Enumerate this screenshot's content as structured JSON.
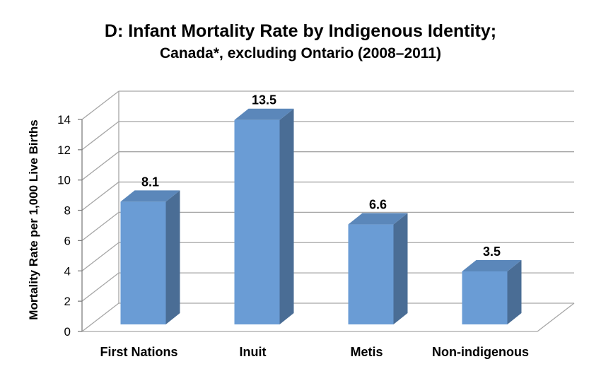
{
  "chart_data": {
    "type": "bar",
    "title": "D: Infant Mortality Rate by Indigenous Identity;",
    "subtitle": "Canada*, excluding Ontario (2008–2011)",
    "ylabel": "Mortality Rate per 1,000 Live Births",
    "xlabel": "",
    "categories": [
      "First Nations",
      "Inuit",
      "Metis",
      "Non-indigenous"
    ],
    "values": [
      8.1,
      13.5,
      6.6,
      3.5
    ],
    "data_labels": [
      "8.1",
      "13.5",
      "6.6",
      "3.5"
    ],
    "ylim": [
      0,
      14
    ],
    "yticks": [
      0,
      2,
      4,
      6,
      8,
      10,
      12,
      14
    ],
    "grid": true,
    "legend": "none",
    "style": "3d-column",
    "bar_color": "#6a9cd5",
    "bar_side_color": "#4a6d95",
    "bar_top_color": "#5b87ba"
  }
}
